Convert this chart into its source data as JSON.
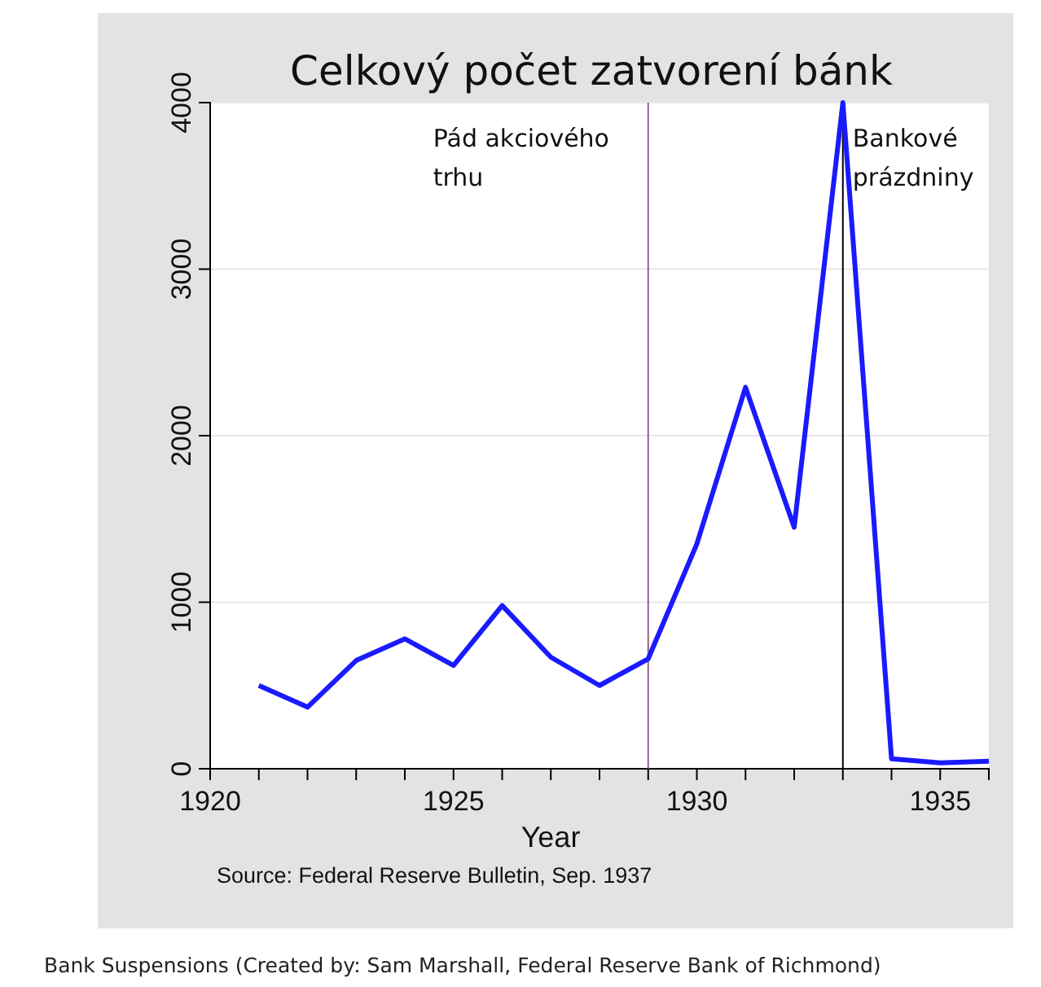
{
  "chart_data": {
    "type": "line",
    "title": "Celkový počet zatvorení bánk",
    "xlabel": "Year",
    "x": [
      1921,
      1922,
      1923,
      1924,
      1925,
      1926,
      1927,
      1928,
      1929,
      1930,
      1931,
      1932,
      1933,
      1934,
      1935,
      1936
    ],
    "series": [
      {
        "color": "#1a1aff",
        "values": [
          500,
          370,
          650,
          780,
          620,
          980,
          670,
          500,
          660,
          1350,
          2290,
          1450,
          4000,
          60,
          35,
          45
        ]
      }
    ],
    "xlim": [
      1920,
      1936
    ],
    "xticks": [
      1920,
      {
        "value": 1921,
        "label": null
      },
      {
        "value": 1922,
        "label": null
      },
      {
        "value": 1923,
        "label": null
      },
      {
        "value": 1924,
        "label": null
      },
      1925,
      {
        "value": 1926,
        "label": null
      },
      {
        "value": 1927,
        "label": null
      },
      {
        "value": 1928,
        "label": null
      },
      {
        "value": 1929,
        "label": null
      },
      1930,
      {
        "value": 1931,
        "label": null
      },
      {
        "value": 1932,
        "label": null
      },
      {
        "value": 1933,
        "label": null
      },
      {
        "value": 1934,
        "label": null
      },
      1935,
      {
        "value": 1936,
        "label": null
      }
    ],
    "ylim": [
      0,
      4000
    ],
    "yticks": [
      0,
      1000,
      2000,
      3000,
      4000
    ],
    "grid": "y",
    "ref_lines": [
      {
        "axis": "x",
        "value": 1929,
        "label": "Pád akciového trhu",
        "color": "#a05a8c"
      },
      {
        "axis": "x",
        "value": 1933,
        "label": "Bankové prázdniny",
        "color": "#000000"
      }
    ],
    "annotations": [
      "Source: Federal Reserve Bulletin, Sep. 1937",
      "Bank Suspensions (Created by: Sam Marshall, Federal Reserve Bank of Richmond)"
    ]
  }
}
